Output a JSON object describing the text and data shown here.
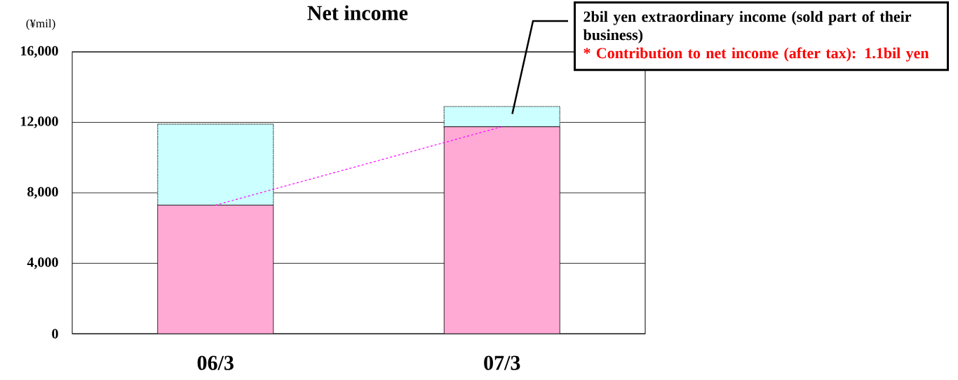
{
  "chart_data": {
    "type": "bar",
    "title": "Net income",
    "ylabel": "(¥mil)",
    "categories": [
      "06/3",
      "07/3"
    ],
    "stacked": true,
    "series": [
      {
        "color": "#ffaad4",
        "values": [
          7300,
          11750
        ]
      },
      {
        "color": "#ccffff",
        "values": [
          4600,
          1150
        ]
      },
      {
        "type": "line",
        "color": "#ff00ff",
        "line_style": "dashed",
        "values": [
          7300,
          11750
        ]
      }
    ],
    "ylim": [
      0,
      16000
    ],
    "yticks": [
      {
        "value": 0,
        "label": "0"
      },
      {
        "value": 4000,
        "label": "4,000"
      },
      {
        "value": 8000,
        "label": "8,000"
      },
      {
        "value": 12000,
        "label": "12,000"
      },
      {
        "value": 16000,
        "label": "16,000"
      }
    ],
    "grid": "y",
    "annotations": [
      "2bil yen extraordinary income (sold part of their business)",
      "* Contribution to net income (after tax): 1.1bil yen"
    ]
  }
}
